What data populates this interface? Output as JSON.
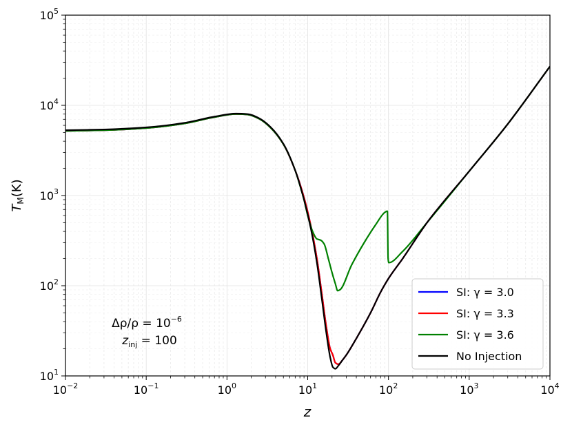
{
  "chart_data": {
    "type": "line",
    "xscale": "log",
    "yscale": "log",
    "xlim": [
      0.01,
      10000
    ],
    "ylim": [
      10,
      100000
    ],
    "xlabel_base": "z",
    "ylabel_base": "T",
    "ylabel_sub": "M",
    "ylabel_unit": "(K)",
    "grid": true,
    "legend_position": "lower-right",
    "x_ticks": [
      {
        "base": "10",
        "exp": "−2"
      },
      {
        "base": "10",
        "exp": "−1"
      },
      {
        "base": "10",
        "exp": "0"
      },
      {
        "base": "10",
        "exp": "1"
      },
      {
        "base": "10",
        "exp": "2"
      },
      {
        "base": "10",
        "exp": "3"
      },
      {
        "base": "10",
        "exp": "4"
      }
    ],
    "y_ticks": [
      {
        "base": "10",
        "exp": "1"
      },
      {
        "base": "10",
        "exp": "2"
      },
      {
        "base": "10",
        "exp": "3"
      },
      {
        "base": "10",
        "exp": "4"
      },
      {
        "base": "10",
        "exp": "5"
      }
    ],
    "annotation": {
      "line1": "Δρ/ρ = 10",
      "line1_exp": "−6",
      "line2_base": "z",
      "line2_sub": "inj",
      "line2_value": " = 100"
    },
    "series": [
      {
        "name": "SI: γ = 3.0",
        "color": "#0000ff",
        "x": [
          0.01,
          0.03,
          0.1,
          0.3,
          0.7,
          1.3,
          1.8,
          2.5,
          3.5,
          5,
          7,
          9,
          11,
          13,
          15,
          17,
          19,
          20.5,
          22,
          24,
          27,
          30,
          40,
          60,
          80,
          100,
          150,
          300,
          1000,
          3000,
          10000
        ],
        "y": [
          5200,
          5300,
          5600,
          6300,
          7400,
          8000,
          7900,
          7100,
          5600,
          3700,
          1900,
          950,
          450,
          200,
          80,
          35,
          20,
          17,
          14,
          13.5,
          15,
          17,
          26,
          50,
          85,
          120,
          200,
          500,
          1860,
          6200,
          27000
        ]
      },
      {
        "name": "SI: γ = 3.3",
        "color": "#ff0000",
        "x": [
          0.01,
          0.03,
          0.1,
          0.3,
          0.7,
          1.3,
          1.8,
          2.5,
          3.5,
          5,
          7,
          9,
          11,
          13,
          15,
          17,
          19,
          20.5,
          22,
          24,
          27,
          30,
          40,
          60,
          80,
          100,
          150,
          300,
          1000,
          3000,
          10000
        ],
        "y": [
          5200,
          5300,
          5600,
          6300,
          7400,
          8000,
          7900,
          7100,
          5600,
          3700,
          1900,
          950,
          450,
          200,
          80,
          35,
          20,
          17,
          14,
          13.5,
          15,
          17,
          26,
          50,
          85,
          120,
          200,
          500,
          1860,
          6200,
          27000
        ]
      },
      {
        "name": "SI: γ = 3.6",
        "color": "#008000",
        "x": [
          0.01,
          0.03,
          0.1,
          0.3,
          0.7,
          1.3,
          1.8,
          2.5,
          3.5,
          5,
          7,
          8,
          9,
          10,
          11.5,
          13,
          14.5,
          16,
          18,
          20,
          22,
          23.5,
          25,
          35,
          50,
          70,
          90,
          96,
          97,
          99,
          101,
          150,
          300,
          1000,
          3000,
          10000
        ],
        "y": [
          5200,
          5300,
          5600,
          6300,
          7400,
          8000,
          7900,
          7100,
          5600,
          3700,
          1900,
          1300,
          900,
          600,
          400,
          330,
          320,
          290,
          200,
          140,
          105,
          88,
          90,
          170,
          300,
          480,
          650,
          670,
          670,
          200,
          180,
          240,
          500,
          1860,
          6200,
          27000
        ]
      },
      {
        "name": "No Injection",
        "color": "#000000",
        "x": [
          0.01,
          0.03,
          0.1,
          0.3,
          0.7,
          1.3,
          1.8,
          2.5,
          3.5,
          5,
          7,
          9,
          11,
          13,
          15,
          17,
          19,
          20.5,
          22,
          24,
          27,
          30,
          40,
          60,
          80,
          100,
          150,
          300,
          1000,
          3000,
          10000
        ],
        "y": [
          5300,
          5400,
          5700,
          6400,
          7500,
          8100,
          8000,
          7200,
          5700,
          3750,
          1900,
          900,
          420,
          180,
          70,
          30,
          16,
          12.5,
          12,
          13,
          15,
          17,
          26,
          50,
          85,
          120,
          200,
          500,
          1860,
          6200,
          27000
        ]
      }
    ]
  }
}
